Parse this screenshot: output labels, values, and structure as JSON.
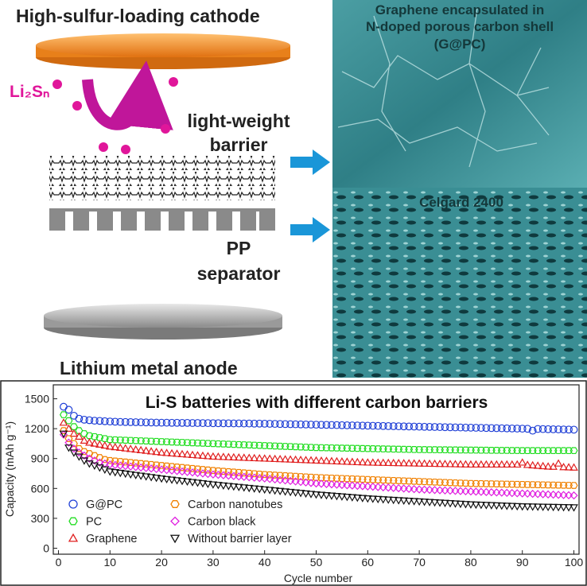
{
  "schematic": {
    "cathode": "High-sulfur-loading cathode",
    "polysulfide": "Li₂Sₙ",
    "barrier": [
      "light-weight",
      "barrier"
    ],
    "separator": [
      "PP",
      "separator"
    ],
    "anode": "Lithium metal anode"
  },
  "micrograph": {
    "top_label": [
      "Graphene encapsulated in",
      "N-doped porous carbon shell",
      "(G@PC)"
    ],
    "bottom_label": "Celgard 2400"
  },
  "chart_data": {
    "type": "scatter",
    "title": "Li-S batteries with different carbon barriers",
    "xlabel": "Cycle number",
    "ylabel": "Capacity (mAh g⁻¹)",
    "xlim": [
      -1,
      101
    ],
    "ylim": [
      -60,
      1640
    ],
    "xticks": [
      0,
      10,
      20,
      30,
      40,
      50,
      60,
      70,
      80,
      90,
      100
    ],
    "yticks": [
      0,
      300,
      600,
      900,
      1200,
      1500
    ],
    "legend": "lower left",
    "x": [
      1,
      2,
      3,
      4,
      5,
      6,
      7,
      8,
      9,
      10,
      11,
      12,
      13,
      14,
      15,
      16,
      17,
      18,
      19,
      20,
      21,
      22,
      23,
      24,
      25,
      26,
      27,
      28,
      29,
      30,
      31,
      32,
      33,
      34,
      35,
      36,
      37,
      38,
      39,
      40,
      41,
      42,
      43,
      44,
      45,
      46,
      47,
      48,
      49,
      50,
      51,
      52,
      53,
      54,
      55,
      56,
      57,
      58,
      59,
      60,
      61,
      62,
      63,
      64,
      65,
      66,
      67,
      68,
      69,
      70,
      71,
      72,
      73,
      74,
      75,
      76,
      77,
      78,
      79,
      80,
      81,
      82,
      83,
      84,
      85,
      86,
      87,
      88,
      89,
      90,
      91,
      92,
      93,
      94,
      95,
      96,
      97,
      98,
      99,
      100
    ],
    "series": [
      {
        "name": "G@PC",
        "color": "#1f3fd6",
        "marker": "circle",
        "values": [
          1420,
          1390,
          1330,
          1300,
          1290,
          1285,
          1280,
          1278,
          1275,
          1272,
          1270,
          1268,
          1267,
          1266,
          1265,
          1264,
          1263,
          1262,
          1261,
          1260,
          1260,
          1259,
          1259,
          1258,
          1258,
          1257,
          1257,
          1256,
          1256,
          1255,
          1255,
          1254,
          1254,
          1253,
          1253,
          1252,
          1252,
          1251,
          1251,
          1250,
          1249,
          1248,
          1247,
          1246,
          1245,
          1244,
          1243,
          1242,
          1241,
          1240,
          1239,
          1238,
          1237,
          1236,
          1235,
          1234,
          1233,
          1232,
          1231,
          1230,
          1229,
          1228,
          1227,
          1226,
          1225,
          1224,
          1223,
          1222,
          1221,
          1220,
          1219,
          1218,
          1217,
          1216,
          1215,
          1214,
          1213,
          1212,
          1211,
          1210,
          1209,
          1208,
          1207,
          1206,
          1205,
          1204,
          1203,
          1202,
          1201,
          1200,
          1199,
          1180,
          1197,
          1196,
          1195,
          1194,
          1193,
          1192,
          1191,
          1190
        ]
      },
      {
        "name": "PC",
        "color": "#22dd22",
        "marker": "hexagon",
        "values": [
          1340,
          1280,
          1220,
          1180,
          1150,
          1130,
          1120,
          1110,
          1100,
          1090,
          1088,
          1086,
          1084,
          1082,
          1080,
          1078,
          1076,
          1074,
          1072,
          1070,
          1068,
          1066,
          1064,
          1062,
          1060,
          1058,
          1056,
          1054,
          1052,
          1050,
          1048,
          1046,
          1044,
          1042,
          1040,
          1038,
          1036,
          1034,
          1032,
          1030,
          1028,
          1026,
          1024,
          1022,
          1020,
          1018,
          1016,
          1014,
          1012,
          1010,
          1009,
          1008,
          1007,
          1006,
          1005,
          1004,
          1003,
          1002,
          1001,
          1000,
          999,
          998,
          997,
          996,
          995,
          994,
          993,
          992,
          991,
          990,
          990,
          989,
          989,
          988,
          988,
          987,
          987,
          986,
          986,
          985,
          985,
          984,
          984,
          983,
          983,
          982,
          982,
          981,
          981,
          980,
          980,
          980,
          980,
          980,
          980,
          980,
          980,
          980,
          980,
          980
        ]
      },
      {
        "name": "Graphene",
        "color": "#e02020",
        "marker": "triangle",
        "values": [
          1260,
          1200,
          1150,
          1120,
          1080,
          1060,
          1050,
          1040,
          1030,
          1020,
          1014,
          1008,
          1002,
          996,
          990,
          984,
          978,
          972,
          966,
          960,
          956,
          952,
          948,
          944,
          940,
          936,
          932,
          928,
          924,
          920,
          918,
          916,
          914,
          912,
          910,
          908,
          906,
          904,
          902,
          900,
          898,
          896,
          894,
          892,
          890,
          888,
          886,
          884,
          882,
          880,
          878,
          876,
          874,
          872,
          870,
          868,
          866,
          864,
          862,
          860,
          859,
          858,
          857,
          856,
          855,
          854,
          853,
          852,
          851,
          850,
          849,
          848,
          847,
          846,
          845,
          844,
          843,
          842,
          841,
          840,
          840,
          840,
          840,
          840,
          840,
          840,
          840,
          840,
          840,
          860,
          836,
          832,
          828,
          824,
          820,
          818,
          850,
          814,
          812,
          810
        ]
      },
      {
        "name": "Carbon nanotubes",
        "color": "#f08000",
        "marker": "hexagon",
        "values": [
          1180,
          1100,
          1050,
          1000,
          970,
          950,
          930,
          910,
          890,
          880,
          875,
          870,
          865,
          860,
          855,
          850,
          845,
          840,
          835,
          830,
          825,
          820,
          815,
          810,
          805,
          800,
          795,
          790,
          785,
          780,
          776,
          772,
          768,
          764,
          760,
          756,
          752,
          748,
          744,
          740,
          737,
          734,
          731,
          728,
          725,
          722,
          719,
          716,
          713,
          710,
          708,
          706,
          704,
          702,
          700,
          698,
          696,
          694,
          692,
          690,
          688,
          686,
          684,
          682,
          680,
          678,
          676,
          674,
          672,
          670,
          668,
          666,
          664,
          662,
          660,
          658,
          656,
          654,
          652,
          650,
          649,
          648,
          647,
          646,
          645,
          644,
          643,
          642,
          641,
          640,
          639,
          638,
          637,
          636,
          635,
          634,
          633,
          632,
          631,
          630
        ]
      },
      {
        "name": "Carbon black",
        "color": "#e020e0",
        "marker": "diamond",
        "values": [
          1140,
          1060,
          1000,
          960,
          930,
          900,
          880,
          860,
          850,
          840,
          835,
          830,
          825,
          820,
          815,
          810,
          805,
          800,
          795,
          790,
          785,
          780,
          775,
          770,
          765,
          760,
          755,
          750,
          745,
          740,
          736,
          732,
          728,
          724,
          720,
          716,
          712,
          708,
          704,
          700,
          695,
          690,
          685,
          680,
          675,
          670,
          665,
          660,
          655,
          650,
          647,
          644,
          641,
          638,
          635,
          632,
          629,
          626,
          623,
          620,
          617,
          614,
          611,
          608,
          605,
          602,
          599,
          596,
          593,
          590,
          588,
          586,
          584,
          582,
          580,
          578,
          576,
          574,
          572,
          570,
          568,
          566,
          564,
          562,
          560,
          558,
          556,
          554,
          552,
          550,
          548,
          546,
          544,
          542,
          540,
          538,
          536,
          534,
          532,
          530
        ]
      },
      {
        "name": "Without barrier layer",
        "color": "#111111",
        "marker": "triangle-down",
        "values": [
          1150,
          1010,
          960,
          920,
          880,
          850,
          830,
          810,
          790,
          770,
          763,
          756,
          749,
          742,
          735,
          728,
          721,
          714,
          707,
          700,
          694,
          688,
          682,
          676,
          670,
          664,
          658,
          652,
          646,
          640,
          635,
          630,
          625,
          620,
          615,
          610,
          605,
          600,
          595,
          590,
          585,
          580,
          575,
          570,
          565,
          560,
          555,
          550,
          545,
          540,
          536,
          532,
          528,
          524,
          520,
          516,
          512,
          508,
          504,
          500,
          497,
          494,
          491,
          488,
          485,
          482,
          479,
          476,
          473,
          470,
          467,
          464,
          461,
          458,
          455,
          452,
          449,
          446,
          443,
          440,
          438,
          436,
          434,
          432,
          430,
          428,
          426,
          424,
          422,
          420,
          419,
          418,
          417,
          416,
          415,
          414,
          413,
          412,
          411,
          410
        ]
      }
    ]
  }
}
